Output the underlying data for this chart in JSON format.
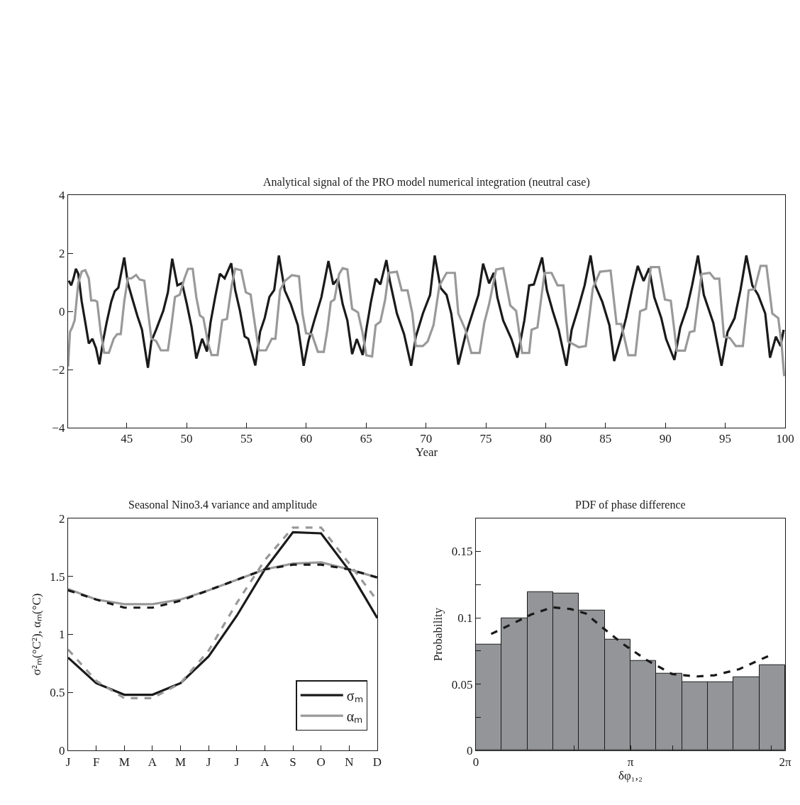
{
  "chart_data": [
    {
      "type": "line",
      "title": "Analytical signal of the PRO model numerical integration (neutral case)",
      "xlabel": "Year",
      "xlim": [
        40.1,
        100
      ],
      "xticks": [
        45,
        50,
        55,
        60,
        65,
        70,
        75,
        80,
        85,
        90,
        95,
        100
      ],
      "ylim": [
        -4,
        4
      ],
      "yticks": [
        -4,
        -2,
        0,
        2,
        4
      ],
      "legend": false,
      "series": [
        {
          "color": "#1a1a1a",
          "line_style": "solid",
          "x": [
            40.16,
            40.36,
            40.55,
            40.75,
            40.95,
            41.24,
            41.54,
            41.83,
            42.13,
            42.43,
            42.72,
            43.02,
            43.32,
            43.71,
            44.0,
            44.3,
            44.79,
            45.09,
            45.48,
            45.88,
            46.27,
            46.77,
            47.06,
            47.46,
            48.05,
            48.44,
            48.8,
            49.23,
            49.62,
            50.02,
            50.42,
            50.81,
            51.3,
            51.7,
            52.0,
            52.39,
            52.78,
            53.18,
            53.73,
            54.06,
            54.46,
            54.85,
            55.15,
            55.74,
            56.14,
            56.53,
            56.92,
            57.32,
            57.71,
            58.2,
            58.7,
            59.29,
            59.78,
            60.18,
            60.67,
            61.26,
            61.85,
            62.25,
            62.64,
            63.04,
            63.43,
            63.83,
            64.22,
            64.71,
            65.01,
            65.4,
            65.8,
            66.19,
            66.69,
            66.98,
            67.57,
            68.17,
            68.76,
            69.15,
            69.74,
            70.34,
            70.73,
            71.22,
            71.72,
            72.11,
            72.7,
            73.29,
            73.88,
            74.38,
            74.77,
            75.27,
            75.66,
            75.96,
            76.45,
            77.14,
            77.63,
            78.22,
            78.62,
            79.01,
            79.7,
            80.1,
            80.59,
            81.08,
            81.73,
            82.17,
            82.76,
            83.25,
            83.75,
            84.14,
            84.73,
            85.32,
            85.72,
            86.31,
            86.71,
            87.2,
            87.69,
            88.18,
            88.64,
            89.07,
            89.66,
            90.06,
            90.75,
            91.24,
            91.83,
            92.23,
            92.72,
            93.21,
            94.0,
            94.69,
            95.19,
            95.78,
            96.27,
            96.76,
            97.26,
            97.75,
            98.34,
            98.74,
            99.23,
            99.62,
            99.88
          ],
          "values": [
            1.06,
            0.9,
            1.14,
            1.47,
            1.3,
            0.34,
            -0.38,
            -1.1,
            -0.94,
            -1.26,
            -1.82,
            -1.02,
            -0.38,
            0.34,
            0.7,
            0.82,
            1.86,
            0.98,
            0.42,
            -0.14,
            -0.62,
            -1.94,
            -1.02,
            -0.62,
            0.02,
            0.66,
            1.82,
            0.9,
            0.98,
            0.26,
            -0.54,
            -1.62,
            -0.94,
            -1.38,
            -0.38,
            0.5,
            1.3,
            1.14,
            1.66,
            0.74,
            0.02,
            -0.86,
            -0.94,
            -1.86,
            -0.7,
            -0.22,
            0.5,
            0.74,
            1.93,
            0.73,
            0.26,
            -0.47,
            -1.87,
            -1.02,
            -0.31,
            0.49,
            1.74,
            0.93,
            1.13,
            0.25,
            -0.31,
            -1.47,
            -0.95,
            -1.5,
            -0.63,
            0.33,
            1.13,
            0.93,
            1.77,
            1.05,
            -0.07,
            -0.78,
            -1.87,
            -0.87,
            -0.07,
            0.57,
            1.93,
            0.81,
            0.57,
            -0.07,
            -1.83,
            -0.83,
            -0.07,
            0.57,
            1.65,
            0.97,
            1.33,
            0.49,
            -0.31,
            -0.95,
            -1.59,
            -0.3,
            0.9,
            0.93,
            1.86,
            0.73,
            0.01,
            -0.63,
            -1.87,
            -0.63,
            0.17,
            0.9,
            1.93,
            0.9,
            0.33,
            -0.47,
            -1.71,
            -0.87,
            -0.23,
            0.73,
            1.57,
            1.05,
            1.49,
            0.49,
            -0.23,
            -0.95,
            -1.67,
            -0.55,
            0.17,
            0.9,
            1.93,
            0.57,
            -0.39,
            -1.87,
            -0.71,
            -0.23,
            0.73,
            1.93,
            0.9,
            0.57,
            -0.07,
            -1.59,
            -0.87,
            -1.19,
            -0.63
          ]
        },
        {
          "color": "#999999",
          "line_style": "solid",
          "x": [
            40.1,
            40.26,
            40.45,
            40.65,
            40.95,
            41.24,
            41.54,
            41.83,
            42.03,
            42.33,
            42.53,
            42.82,
            43.12,
            43.51,
            43.91,
            44.2,
            44.5,
            44.79,
            45.09,
            45.39,
            45.78,
            46.08,
            46.47,
            46.77,
            47.06,
            47.46,
            47.85,
            48.44,
            48.74,
            49.03,
            49.43,
            49.82,
            50.12,
            50.51,
            50.81,
            51.11,
            51.4,
            51.8,
            52.09,
            52.59,
            52.98,
            53.37,
            53.77,
            54.06,
            54.56,
            54.95,
            55.35,
            55.74,
            56.04,
            56.63,
            57.12,
            57.42,
            57.81,
            58.2,
            58.8,
            59.39,
            59.68,
            59.98,
            60.47,
            60.97,
            61.46,
            61.76,
            62.05,
            62.35,
            62.74,
            63.04,
            63.43,
            63.83,
            64.32,
            64.71,
            65.01,
            65.5,
            65.8,
            66.19,
            66.59,
            66.88,
            67.57,
            67.97,
            68.46,
            68.86,
            69.15,
            69.74,
            70.14,
            70.63,
            71.12,
            71.72,
            72.41,
            72.7,
            73.29,
            73.79,
            74.48,
            74.87,
            75.27,
            75.86,
            76.45,
            77.04,
            77.53,
            78.03,
            78.62,
            78.82,
            79.31,
            79.9,
            80.49,
            80.99,
            81.48,
            81.87,
            82.76,
            83.35,
            83.94,
            84.54,
            85.42,
            85.92,
            86.31,
            86.9,
            87.49,
            87.89,
            88.38,
            88.78,
            89.47,
            89.96,
            90.45,
            90.95,
            91.63,
            92.03,
            92.42,
            93.02,
            93.71,
            94.1,
            94.5,
            94.89,
            95.38,
            95.88,
            96.47,
            96.96,
            97.45,
            97.95,
            98.44,
            98.93,
            99.43,
            99.72,
            99.92
          ],
          "values": [
            -1.9,
            -0.7,
            -0.54,
            -0.3,
            0.98,
            1.38,
            1.42,
            1.14,
            0.38,
            0.38,
            0.34,
            -0.7,
            -1.42,
            -1.42,
            -0.94,
            -0.78,
            -0.78,
            0.34,
            1.14,
            1.14,
            1.26,
            1.1,
            1.06,
            0.02,
            -0.94,
            -1.02,
            -1.34,
            -1.34,
            -0.46,
            0.5,
            0.58,
            1.14,
            1.47,
            1.47,
            0.5,
            -0.14,
            -0.22,
            -1.1,
            -1.5,
            -1.5,
            -0.3,
            -0.26,
            0.9,
            1.47,
            1.42,
            0.66,
            0.58,
            -0.54,
            -1.34,
            -1.34,
            -0.94,
            -0.94,
            0.73,
            1.05,
            1.25,
            1.21,
            -0.07,
            -0.75,
            -0.79,
            -1.39,
            -1.39,
            -0.63,
            0.33,
            0.41,
            1.29,
            1.49,
            1.45,
            0.09,
            -0.03,
            -0.75,
            -1.51,
            -1.55,
            -0.47,
            -0.35,
            0.41,
            1.33,
            1.37,
            0.73,
            0.73,
            -0.07,
            -1.19,
            -1.19,
            -1.03,
            -0.47,
            0.89,
            1.33,
            1.33,
            -0.07,
            -0.63,
            -1.43,
            -1.43,
            -0.39,
            0.25,
            1.45,
            1.49,
            0.21,
            0.02,
            -1.43,
            -1.43,
            -0.63,
            -0.55,
            1.33,
            1.33,
            0.9,
            0.9,
            -1.03,
            -1.23,
            -1.19,
            0.81,
            1.37,
            1.41,
            -0.43,
            -0.43,
            -1.51,
            -1.51,
            0.01,
            0.09,
            1.53,
            1.53,
            0.41,
            0.37,
            -1.35,
            -1.35,
            -0.71,
            -0.67,
            1.29,
            1.33,
            1.13,
            1.13,
            -0.87,
            -0.91,
            -1.19,
            -1.19,
            0.73,
            0.77,
            1.57,
            1.57,
            -0.07,
            -0.23,
            -1.19,
            -2.23
          ]
        }
      ]
    },
    {
      "type": "line",
      "title": "Seasonal Nino3.4 variance and amplitude",
      "ylabel": "σ²ₘ(°C²), αₘ(°C)",
      "categories": [
        "J",
        "F",
        "M",
        "A",
        "M",
        "J",
        "J",
        "A",
        "S",
        "O",
        "N",
        "D"
      ],
      "ylim": [
        0,
        2
      ],
      "yticks": [
        0,
        0.5,
        1,
        1.5,
        2
      ],
      "legend": "bottom right",
      "series": [
        {
          "name": "σₘ",
          "color": "#1a1a1a",
          "line_style": "solid",
          "values": [
            0.8,
            0.58,
            0.48,
            0.48,
            0.58,
            0.81,
            1.16,
            1.56,
            1.88,
            1.87,
            1.55,
            1.14
          ]
        },
        {
          "name": "αₘ",
          "color": "#999999",
          "line_style": "solid",
          "values": [
            1.39,
            1.3,
            1.26,
            1.26,
            1.3,
            1.38,
            1.47,
            1.56,
            1.61,
            1.62,
            1.56,
            1.49
          ]
        },
        {
          "color": "#999999",
          "line_style": "dashed",
          "values": [
            0.87,
            0.6,
            0.45,
            0.45,
            0.58,
            0.86,
            1.27,
            1.64,
            1.92,
            1.92,
            1.61,
            1.29
          ]
        },
        {
          "color": "#1a1a1a",
          "line_style": "dashed",
          "values": [
            1.38,
            1.3,
            1.23,
            1.23,
            1.29,
            1.38,
            1.47,
            1.56,
            1.6,
            1.6,
            1.56,
            1.49
          ]
        }
      ]
    },
    {
      "type": "histogram",
      "title": "PDF of phase difference",
      "xlabel": "δφ₁,₂",
      "ylabel": "Probability",
      "color": "#939598",
      "bins": [
        0,
        0.5236,
        1.0472,
        1.5708,
        2.0944,
        2.618,
        3.1416,
        3.6652,
        4.1888,
        4.7124,
        5.236,
        5.7596,
        6.2832
      ],
      "values": [
        0.0796,
        0.0999,
        0.1194,
        0.1182,
        0.1055,
        0.0836,
        0.0675,
        0.0582,
        0.0514,
        0.0514,
        0.0552,
        0.0642
      ],
      "xlim": [
        0,
        6.2832
      ],
      "xticks": [
        0,
        {
          "value": 2,
          "label": null
        },
        {
          "value": 3.1416,
          "label": "π"
        },
        {
          "value": 4,
          "label": null
        },
        {
          "value": 6,
          "label": null
        },
        {
          "value": 6.2832,
          "label": "2π"
        }
      ],
      "ylim": [
        0,
        0.175
      ],
      "yticks": [
        0,
        {
          "value": 0.025,
          "label": null
        },
        0.05,
        {
          "value": 0.075,
          "label": null
        },
        0.1,
        {
          "value": 0.125,
          "label": null
        },
        0.15
      ],
      "legend": false,
      "series": [
        {
          "type": "line",
          "color": "#1a1a1a",
          "line_style": "dashed",
          "x": [
            0.31,
            0.72,
            1.12,
            1.55,
            1.92,
            2.23,
            2.58,
            2.98,
            3.49,
            3.99,
            4.49,
            4.85,
            5.35,
            5.95
          ],
          "values": [
            0.0878,
            0.0951,
            0.1024,
            0.1079,
            0.1066,
            0.1033,
            0.0924,
            0.0805,
            0.0677,
            0.0576,
            0.0558,
            0.0567,
            0.0613,
            0.0713
          ]
        }
      ]
    }
  ]
}
